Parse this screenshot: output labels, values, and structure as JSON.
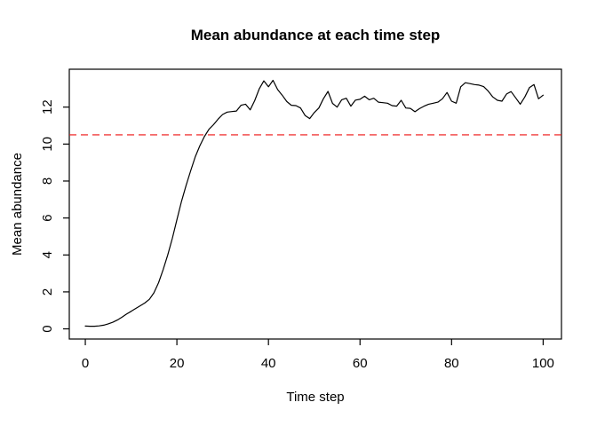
{
  "chart_data": {
    "type": "line",
    "title": "Mean abundance at each time step",
    "xlabel": "Time step",
    "ylabel": "Mean abundance",
    "x_min": 0,
    "x_max": 100,
    "x_ticks": [
      0,
      20,
      40,
      60,
      80,
      100
    ],
    "y_ticks": [
      0,
      2,
      4,
      6,
      8,
      10,
      12
    ],
    "xlim": [
      -3.5,
      104
    ],
    "ylim": [
      -0.55,
      14.05
    ],
    "grid": false,
    "legend": false,
    "series": [
      {
        "name": "mean abundance",
        "color": "#000000",
        "values": [
          0.15,
          0.14,
          0.14,
          0.16,
          0.2,
          0.27,
          0.36,
          0.48,
          0.63,
          0.8,
          0.95,
          1.1,
          1.25,
          1.4,
          1.6,
          1.95,
          2.5,
          3.2,
          4.0,
          4.9,
          5.9,
          6.9,
          7.75,
          8.55,
          9.3,
          9.9,
          10.4,
          10.8,
          11.05,
          11.35,
          11.6,
          11.73,
          11.76,
          11.79,
          12.1,
          12.16,
          11.85,
          12.35,
          13.0,
          13.42,
          13.1,
          13.45,
          12.95,
          12.65,
          12.3,
          12.1,
          12.08,
          11.95,
          11.55,
          11.38,
          11.7,
          11.95,
          12.45,
          12.85,
          12.2,
          12.0,
          12.4,
          12.48,
          12.05,
          12.38,
          12.42,
          12.59,
          12.4,
          12.48,
          12.27,
          12.24,
          12.21,
          12.08,
          12.05,
          12.37,
          11.95,
          11.93,
          11.75,
          11.92,
          12.05,
          12.16,
          12.21,
          12.27,
          12.45,
          12.79,
          12.32,
          12.21,
          13.1,
          13.32,
          13.27,
          13.22,
          13.19,
          13.11,
          12.87,
          12.55,
          12.37,
          12.32,
          12.71,
          12.84,
          12.5,
          12.16,
          12.55,
          13.05,
          13.22,
          12.45,
          12.65
        ]
      }
    ],
    "reference_line": {
      "value": 10.5,
      "color": "#ee1111",
      "style": "dashed"
    },
    "colors": {
      "line": "#000000",
      "reference": "#ee1111",
      "text": "#000000",
      "background": "#ffffff",
      "border": "#000000"
    }
  }
}
